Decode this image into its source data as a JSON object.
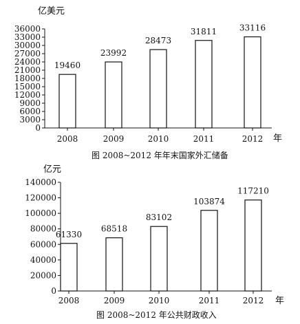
{
  "chart_data": [
    {
      "type": "bar",
      "unit_label": "亿美元",
      "title": "图  2008~2012 年年末国家外汇储备",
      "xlabel": "年",
      "categories": [
        "2008",
        "2009",
        "2010",
        "2011",
        "2012"
      ],
      "values": [
        19460,
        23992,
        28473,
        31811,
        33116
      ],
      "ylim": [
        0,
        36000
      ],
      "ytick_step": 3000,
      "ytick_labels": [
        "0",
        "3000",
        "6000",
        "9000",
        "12000",
        "15000",
        "18000",
        "21000",
        "24000",
        "27000",
        "30000",
        "33000",
        "36000"
      ],
      "grid": false
    },
    {
      "type": "bar",
      "unit_label": "亿元",
      "title": "图  2008~2012 年公共财政收入",
      "xlabel": "年",
      "categories": [
        "2008",
        "2009",
        "2010",
        "2011",
        "2012"
      ],
      "values": [
        61330,
        68518,
        83102,
        103874,
        117210
      ],
      "ylim": [
        0,
        140000
      ],
      "ytick_step": 20000,
      "ytick_labels": [
        "0",
        "20000",
        "40000",
        "60000",
        "80000",
        "100000",
        "120000",
        "140000"
      ],
      "grid": false
    }
  ],
  "colors": {
    "bar_fill": "#ffffff",
    "bar_stroke": "#111111",
    "axis": "#111111"
  }
}
